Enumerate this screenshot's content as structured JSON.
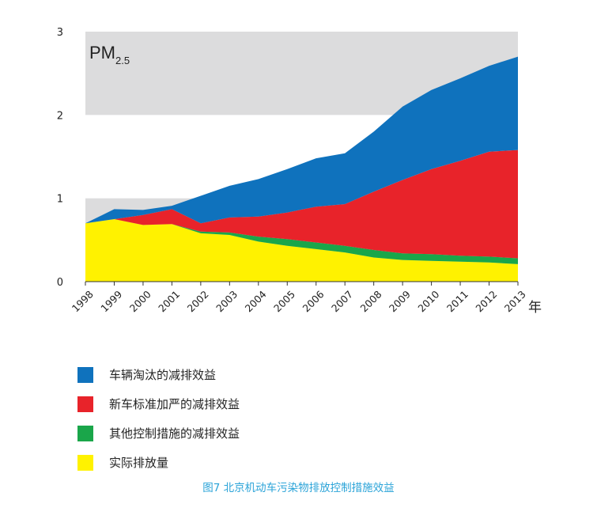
{
  "chart_data": {
    "type": "area",
    "stacked": true,
    "x": [
      1998,
      1999,
      2000,
      2001,
      2002,
      2003,
      2004,
      2005,
      2006,
      2007,
      2008,
      2009,
      2010,
      2011,
      2012,
      2013
    ],
    "x_tick_labels": [
      "1998",
      "1999",
      "2000",
      "2001",
      "2002",
      "2003",
      "2004",
      "2005",
      "2006",
      "2007",
      "2008",
      "2009",
      "2010",
      "2011",
      "2012",
      "2013"
    ],
    "xlabel": "年",
    "ylim": [
      0,
      3
    ],
    "y_ticks": [
      "0",
      "1",
      "2",
      "3"
    ],
    "inset_label": {
      "main": "PM",
      "sub": "2.5"
    },
    "series": [
      {
        "name": "实际排放量",
        "color": "#fff200",
        "values": [
          0.7,
          0.75,
          0.68,
          0.69,
          0.58,
          0.56,
          0.48,
          0.43,
          0.39,
          0.35,
          0.29,
          0.26,
          0.25,
          0.24,
          0.23,
          0.21
        ]
      },
      {
        "name": "其他控制措施的减排效益",
        "color": "#1aa64a",
        "values": [
          0.0,
          0.0,
          0.0,
          0.0,
          0.02,
          0.03,
          0.06,
          0.08,
          0.08,
          0.08,
          0.09,
          0.08,
          0.08,
          0.07,
          0.07,
          0.07
        ]
      },
      {
        "name": "新车标准加严的减排效益",
        "color": "#e8232a",
        "values": [
          0.0,
          0.0,
          0.12,
          0.18,
          0.1,
          0.18,
          0.24,
          0.32,
          0.43,
          0.5,
          0.7,
          0.88,
          1.02,
          1.14,
          1.26,
          1.3
        ]
      },
      {
        "name": "车辆淘汰的减排效益",
        "color": "#0f72bd",
        "values": [
          0.0,
          0.12,
          0.06,
          0.04,
          0.33,
          0.38,
          0.45,
          0.52,
          0.58,
          0.61,
          0.72,
          0.88,
          0.95,
          0.99,
          1.03,
          1.12
        ]
      }
    ]
  },
  "legend": [
    {
      "label": "车辆淘汰的减排效益",
      "color": "#0f72bd"
    },
    {
      "label": "新车标准加严的减排效益",
      "color": "#e8232a"
    },
    {
      "label": "其他控制措施的减排效益",
      "color": "#1aa64a"
    },
    {
      "label": "实际排放量",
      "color": "#fff200"
    }
  ],
  "caption": "图7 北京机动车污染物排放控制措施效益"
}
